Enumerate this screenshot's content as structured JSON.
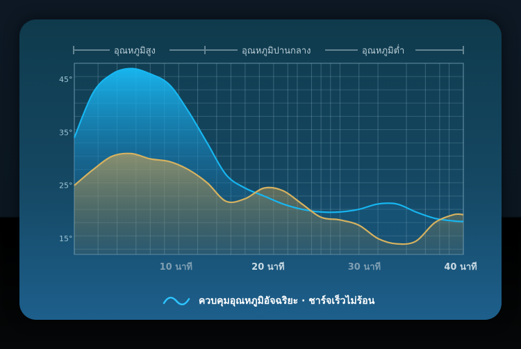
{
  "chart_data": {
    "type": "area",
    "zones": [
      "อุณหภูมิสูง",
      "อุณหภูมิปานกลาง",
      "อุณหภูมิต่ำ"
    ],
    "y_ticks": [
      "45°",
      "35°",
      "25°",
      "15°"
    ],
    "x_ticks": [
      "10 นาที",
      "20 นาที",
      "30 นาที",
      "40 นาที"
    ],
    "ylim": [
      12,
      48
    ],
    "xlim": [
      0,
      41
    ],
    "grid": true,
    "series": [
      {
        "color": "#17b6f0",
        "x": [
          0,
          2,
          4,
          6,
          8,
          10,
          12,
          14,
          16,
          18,
          20,
          22,
          24,
          26,
          28,
          30,
          32,
          34,
          36,
          38,
          40,
          41
        ],
        "y": [
          34,
          42.5,
          46,
          47,
          46,
          44,
          39,
          33,
          27,
          24.5,
          23,
          21.5,
          20.5,
          20,
          20,
          20.5,
          21.5,
          21.5,
          20,
          18.8,
          18.3,
          18.2
        ]
      },
      {
        "color": "#d6b260",
        "x": [
          0,
          2,
          4,
          6,
          8,
          10,
          12,
          14,
          16,
          18,
          20,
          22,
          24,
          26,
          28,
          30,
          32,
          34,
          36,
          38,
          40,
          41
        ],
        "y": [
          25,
          28,
          30.5,
          31,
          30,
          29.5,
          28,
          25.5,
          22,
          22.5,
          24.5,
          24,
          21.5,
          19,
          18.5,
          17.5,
          15,
          14,
          14.5,
          18,
          19.5,
          19.5
        ]
      }
    ],
    "legend": {
      "text": "ควบคุมอุณหภูมิอัจฉริยะ · ชาร์จเร็วไม่ร้อน",
      "placement": "bottom-center"
    }
  }
}
